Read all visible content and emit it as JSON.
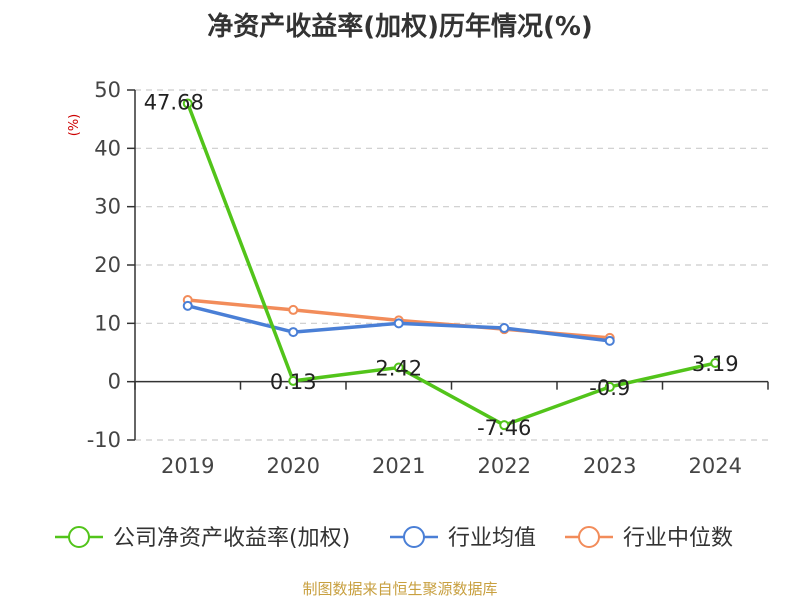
{
  "title": "净资产收益率(加权)历年情况(%)",
  "source": "制图数据来自恒生聚源数据库",
  "chart_data": {
    "type": "line",
    "categories": [
      "2019",
      "2020",
      "2021",
      "2022",
      "2023",
      "2024"
    ],
    "ylabel": "(%)",
    "ylim": [
      -10,
      50
    ],
    "yticks": [
      -10,
      0,
      10,
      20,
      30,
      40,
      50
    ],
    "grid": true,
    "legend_position": "bottom",
    "series": [
      {
        "name": "公司净资产收益率(加权)",
        "color": "#52c41a",
        "values": [
          47.68,
          0.13,
          2.42,
          -7.46,
          -0.9,
          3.19
        ],
        "labels": [
          "47.68",
          "0.13",
          "2.42",
          "-7.46",
          "-0.9",
          "3.19"
        ]
      },
      {
        "name": "行业均值",
        "color": "#4a7fd6",
        "values": [
          13.0,
          8.5,
          10.0,
          9.2,
          7.0,
          null
        ]
      },
      {
        "name": "行业中位数",
        "color": "#f28c5a",
        "values": [
          14.0,
          12.3,
          10.5,
          9.0,
          7.5,
          null
        ]
      }
    ]
  }
}
